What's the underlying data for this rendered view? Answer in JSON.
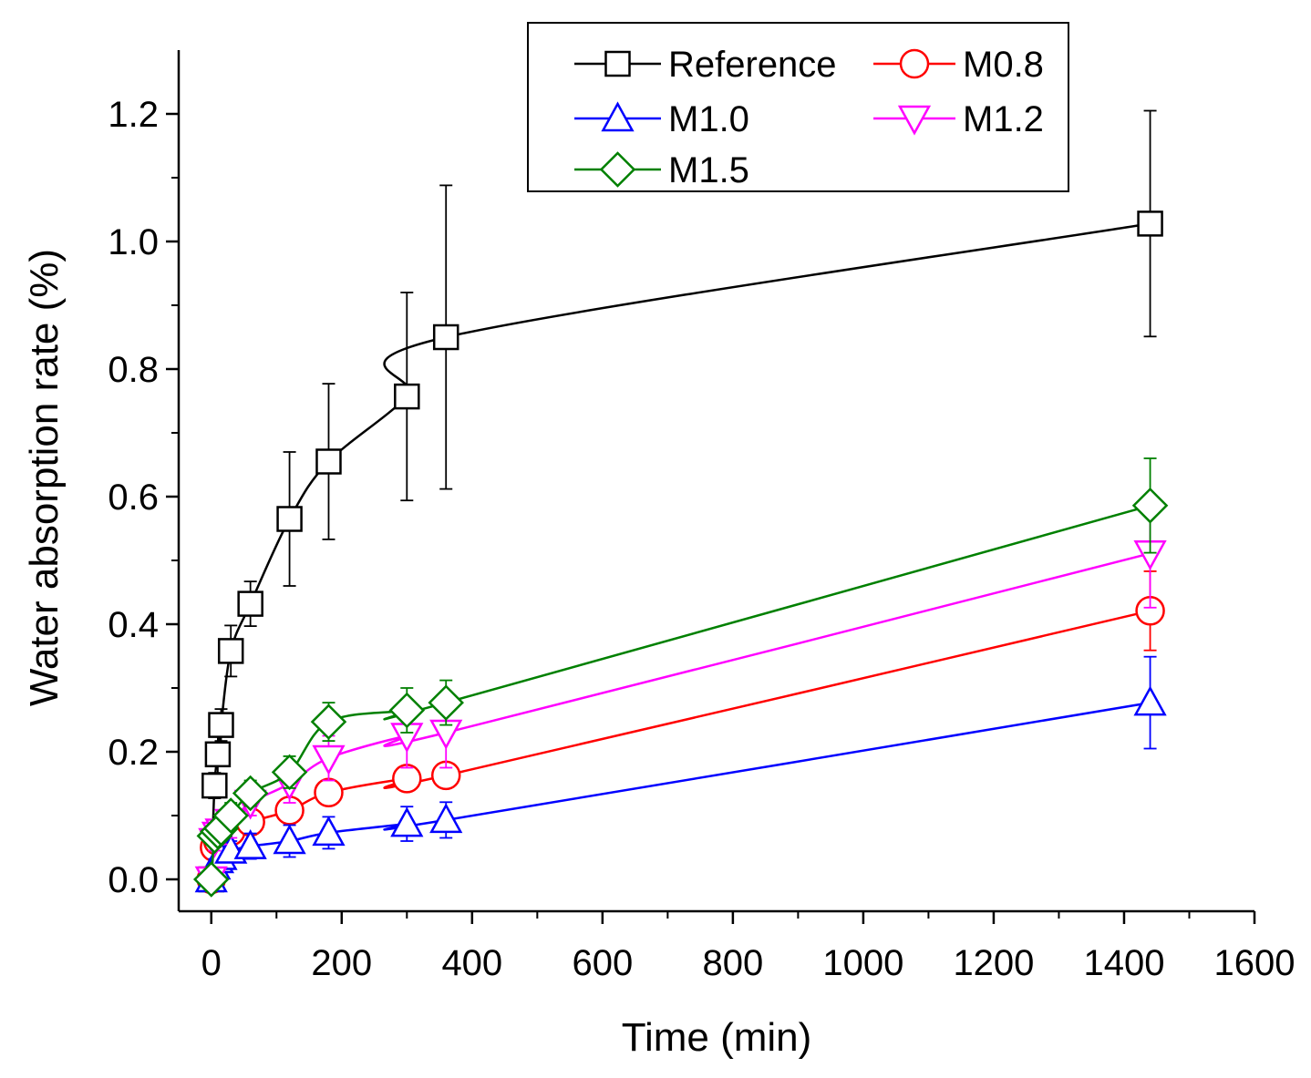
{
  "chart_data": {
    "type": "line",
    "xlabel": "Time (min)",
    "ylabel": "Water absorption rate (%)",
    "xlim": [
      -50,
      1600
    ],
    "ylim": [
      -0.05,
      1.3
    ],
    "xticks": [
      0,
      200,
      400,
      600,
      800,
      1000,
      1200,
      1400,
      1600
    ],
    "yticks": [
      0.0,
      0.2,
      0.4,
      0.6,
      0.8,
      1.0,
      1.2
    ],
    "x_tick_labels": [
      "0",
      "200",
      "400",
      "600",
      "800",
      "1000",
      "1200",
      "1400",
      "1600"
    ],
    "y_tick_labels": [
      "0.0",
      "0.2",
      "0.4",
      "0.6",
      "0.8",
      "1.0",
      "1.2"
    ],
    "legend_placement": "top-right",
    "grid": false,
    "series": [
      {
        "name": "Reference",
        "color": "#000000",
        "marker": "square",
        "x": [
          0,
          5,
          10,
          15,
          30,
          60,
          120,
          180,
          300,
          360,
          1440
        ],
        "y": [
          0.0,
          0.147,
          0.196,
          0.242,
          0.358,
          0.432,
          0.565,
          0.655,
          0.757,
          0.85,
          1.028
        ],
        "err": [
          0.01,
          0.02,
          0.03,
          0.025,
          0.04,
          0.035,
          0.105,
          0.122,
          0.163,
          0.238,
          0.177
        ]
      },
      {
        "name": "M0.8",
        "color": "#ff0000",
        "marker": "circle",
        "x": [
          0,
          5,
          10,
          15,
          30,
          60,
          120,
          180,
          300,
          360,
          1440
        ],
        "y": [
          0.0,
          0.05,
          0.06,
          0.065,
          0.075,
          0.09,
          0.108,
          0.136,
          0.158,
          0.163,
          0.421
        ],
        "err": [
          0.01,
          0.015,
          0.015,
          0.015,
          0.015,
          0.02,
          0.02,
          0.018,
          0.015,
          0.015,
          0.062
        ]
      },
      {
        "name": "M1.0",
        "color": "#0000ff",
        "marker": "triangle-up",
        "x": [
          0,
          5,
          10,
          15,
          30,
          60,
          120,
          180,
          300,
          360,
          1440
        ],
        "y": [
          0.0,
          0.02,
          0.03,
          0.035,
          0.045,
          0.052,
          0.06,
          0.073,
          0.087,
          0.093,
          0.277
        ],
        "err": [
          0.01,
          0.012,
          0.012,
          0.015,
          0.015,
          0.02,
          0.025,
          0.025,
          0.027,
          0.028,
          0.072
        ]
      },
      {
        "name": "M1.2",
        "color": "#ff00ff",
        "marker": "triangle-down",
        "x": [
          0,
          5,
          10,
          15,
          30,
          60,
          120,
          180,
          300,
          360,
          1440
        ],
        "y": [
          0.0,
          0.06,
          0.07,
          0.075,
          0.09,
          0.12,
          0.15,
          0.19,
          0.225,
          0.23,
          0.511
        ],
        "err": [
          0.01,
          0.015,
          0.015,
          0.02,
          0.025,
          0.02,
          0.03,
          0.035,
          0.05,
          0.055,
          0.085
        ]
      },
      {
        "name": "M1.5",
        "color": "#008000",
        "marker": "diamond",
        "x": [
          0,
          5,
          10,
          15,
          30,
          60,
          120,
          180,
          300,
          360,
          1440
        ],
        "y": [
          0.0,
          0.068,
          0.075,
          0.08,
          0.1,
          0.135,
          0.168,
          0.247,
          0.265,
          0.277,
          0.586
        ],
        "err": [
          0.01,
          0.015,
          0.015,
          0.015,
          0.02,
          0.02,
          0.025,
          0.03,
          0.035,
          0.035,
          0.074
        ]
      }
    ]
  }
}
